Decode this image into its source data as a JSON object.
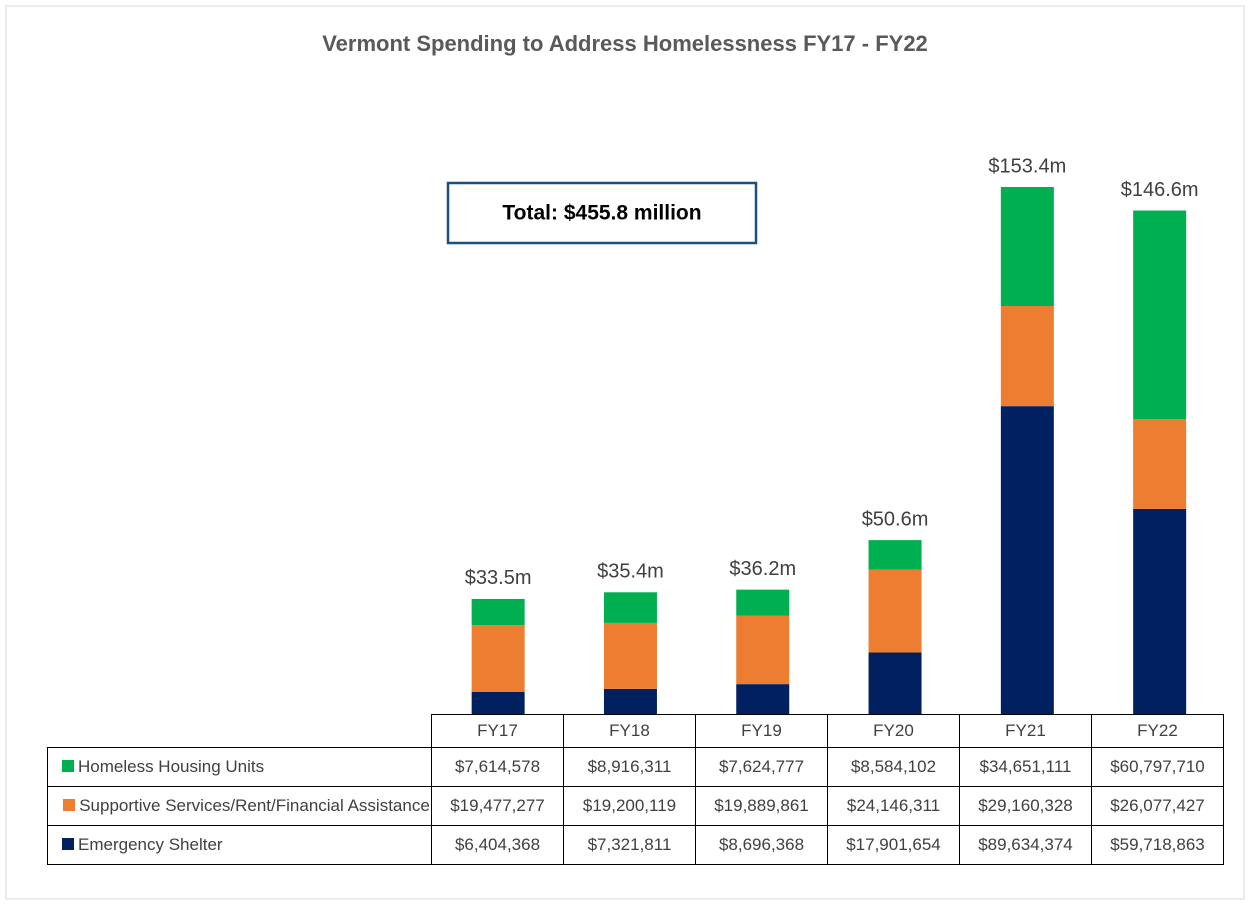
{
  "chart_data": {
    "type": "bar",
    "stacked": true,
    "title": "Vermont Spending to Address Homelessness FY17 - FY22",
    "annotation": "Total: $455.8 million",
    "categories": [
      "FY17",
      "FY18",
      "FY19",
      "FY20",
      "FY21",
      "FY22"
    ],
    "total_labels": [
      "$33.5m",
      "$35.4m",
      "$36.2m",
      "$50.6m",
      "$153.4m",
      "$146.6m"
    ],
    "series": [
      {
        "name": "Homeless Housing Units",
        "color": "#00b050",
        "values": [
          7614578,
          8916311,
          7624777,
          8584102,
          34651111,
          60797710
        ],
        "value_labels": [
          "$7,614,578",
          "$8,916,311",
          "$7,624,777",
          "$8,584,102",
          "$34,651,111",
          "$60,797,710"
        ]
      },
      {
        "name": "Supportive Services/Rent/Financial Assistance",
        "color": "#ed7d31",
        "values": [
          19477277,
          19200119,
          19889861,
          24146311,
          29160328,
          26077427
        ],
        "value_labels": [
          "$19,477,277",
          "$19,200,119",
          "$19,889,861",
          "$24,146,311",
          "$29,160,328",
          "$26,077,427"
        ]
      },
      {
        "name": "Emergency Shelter",
        "color": "#002060",
        "values": [
          6404368,
          7321811,
          8696368,
          17901654,
          89634374,
          59718863
        ],
        "value_labels": [
          "$6,404,368",
          "$7,321,811",
          "$8,696,368",
          "$17,901,654",
          "$89,634,374",
          "$59,718,863"
        ]
      }
    ]
  }
}
